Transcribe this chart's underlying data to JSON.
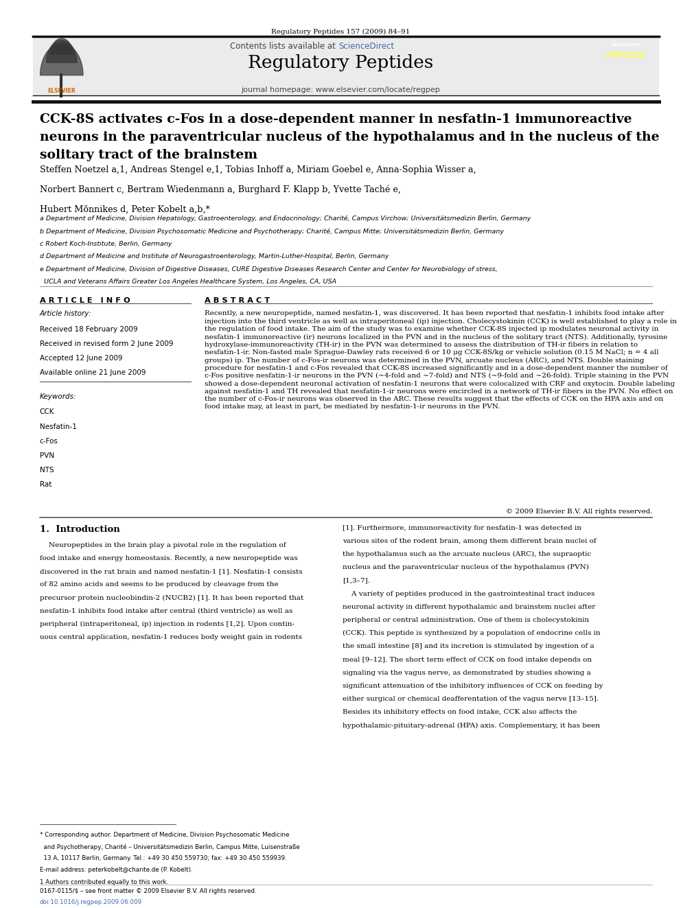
{
  "page_width": 9.92,
  "page_height": 13.23,
  "bg_color": "#ffffff",
  "header_journal_ref": "Regulatory Peptides 157 (2009) 84–91",
  "header_bg": "#ebebeb",
  "journal_title": "Regulatory Peptides",
  "journal_homepage": "journal homepage: www.elsevier.com/locate/regpep",
  "sciencedirect_text": "Contents lists available at ",
  "sciencedirect_link": "ScienceDirect",
  "article_title": "CCK-8S activates c-Fos in a dose-dependent manner in nesfatin-1 immunoreactive\nneurons in the paraventricular nucleus of the hypothalamus and in the nucleus of the\nsolitary tract of the brainstem",
  "authors_line1": "Steffen Noetzel a,1, Andreas Stengel e,1, Tobias Inhoff a, Miriam Goebel e, Anna-Sophia Wisser a,",
  "authors_line2": "Norbert Bannert c, Bertram Wiedenmann a, Burghard F. Klapp b, Yvette Taché e,",
  "authors_line3": "Hubert Mönnikes d, Peter Kobelt a,b,*",
  "affil_a": "a Department of Medicine, Division Hepatology, Gastroenterology, and Endocrinology; Charité, Campus Virchow; Universitätsmedizin Berlin, Germany",
  "affil_b": "b Department of Medicine, Division Psychosomatic Medicine and Psychotherapy; Charité, Campus Mitte; Universitätsmedizin Berlin, Germany",
  "affil_c": "c Robert Koch-Institute, Berlin, Germany",
  "affil_d": "d Department of Medicine and Institute of Neurogastroenterology, Martin-Luther-Hospital, Berlin, Germany",
  "affil_e1": "e Department of Medicine, Division of Digestive Diseases, CURE Digestive Diseases Research Center and Center for Neurobiology of stress,",
  "affil_e2": "  UCLA and Veterans Affairs Greater Los Angeles Healthcare System, Los Angeles, CA, USA",
  "article_info_header": "A R T I C L E   I N F O",
  "abstract_header": "A B S T R A C T",
  "article_history_label": "Article history:",
  "received_1": "Received 18 February 2009",
  "received_2": "Received in revised form 2 June 2009",
  "accepted": "Accepted 12 June 2009",
  "available": "Available online 21 June 2009",
  "keywords_label": "Keywords:",
  "keywords": [
    "CCK",
    "Nesfatin-1",
    "c-Fos",
    "PVN",
    "NTS",
    "Rat"
  ],
  "abstract_text": "Recently, a new neuropeptide, named nesfatin-1, was discovered. It has been reported that nesfatin-1 inhibits food intake after injection into the third ventricle as well as intraperitoneal (ip) injection. Cholecystokinin (CCK) is well established to play a role in the regulation of food intake. The aim of the study was to examine whether CCK-8S injected ip modulates neuronal activity in nesfatin-1 immunoreactive (ir) neurons localized in the PVN and in the nucleus of the solitary tract (NTS). Additionally, tyrosine hydroxylase-immunoreactivity (TH-ir) in the PVN was determined to assess the distribution of TH-ir fibers in relation to nesfatin-1-ir. Non-fasted male Sprague-Dawley rats received 6 or 10 μg CCK-8S/kg or vehicle solution (0.15 M NaCl; n = 4 all groups) ip. The number of c-Fos-ir neurons was determined in the PVN, arcuate nucleus (ARC), and NTS. Double staining procedure for nesfatin-1 and c-Fos revealed that CCK-8S increased significantly and in a dose-dependent manner the number of c-Fos positive nesfatin-1-ir neurons in the PVN (~4-fold and ~7-fold) and NTS (~9-fold and ~26-fold). Triple staining in the PVN showed a dose-dependent neuronal activation of nesfatin-1 neurons that were colocalized with CRF and oxytocin. Double labeling against nesfatin-1 and TH revealed that nesfatin-1-ir neurons were encircled in a network of TH-ir fibers in the PVN. No effect on the number of c-Fos-ir neurons was observed in the ARC. These results suggest that the effects of CCK on the HPA axis and on food intake may, at least in part, be mediated by nesfatin-1-ir neurons in the PVN.",
  "copyright": "© 2009 Elsevier B.V. All rights reserved.",
  "intro_header": "1.  Introduction",
  "intro_text_lines": [
    "    Neuropeptides in the brain play a pivotal role in the regulation of",
    "food intake and energy homeostasis. Recently, a new neuropeptide was",
    "discovered in the rat brain and named nesfatin-1 [1]. Nesfatin-1 consists",
    "of 82 amino acids and seems to be produced by cleavage from the",
    "precursor protein nucleobindin-2 (NUCB2) [1]. It has been reported that",
    "nesfatin-1 inhibits food intake after central (third ventricle) as well as",
    "peripheral (intraperitoneal, ip) injection in rodents [1,2]. Upon contin-",
    "uous central application, nesfatin-1 reduces body weight gain in rodents"
  ],
  "right_col_lines": [
    "[1]. Furthermore, immunoreactivity for nesfatin-1 was detected in",
    "various sites of the rodent brain, among them different brain nuclei of",
    "the hypothalamus such as the arcuate nucleus (ARC), the supraoptic",
    "nucleus and the paraventricular nucleus of the hypothalamus (PVN)",
    "[1,3–7].",
    "    A variety of peptides produced in the gastrointestinal tract induces",
    "neuronal activity in different hypothalamic and brainstem nuclei after",
    "peripheral or central administration. One of them is cholecystokinin",
    "(CCK). This peptide is synthesized by a population of endocrine cells in",
    "the small intestine [8] and its incretion is stimulated by ingestion of a",
    "meal [9–12]. The short term effect of CCK on food intake depends on",
    "signaling via the vagus nerve, as demonstrated by studies showing a",
    "significant attenuation of the inhibitory influences of CCK on feeding by",
    "either surgical or chemical deafferentation of the vagus nerve [13–15].",
    "Besides its inhibitory effects on food intake, CCK also affects the",
    "hypothalamic-pituitary-adrenal (HPA) axis. Complementary, it has been"
  ],
  "footnote_star": "* Corresponding author. Department of Medicine, Division Psychosomatic Medicine",
  "footnote_star2": "  and Psychotherapy, Charité – Universitätsmedizin Berlin, Campus Mitte, Luisenstraße",
  "footnote_star3": "  13 A, 10117 Berlin, Germany. Tel.: +49 30 450 559730; fax: +49 30 450 559939.",
  "footnote_email": "E-mail address: peterkobelt@charite.de (P. Kobelt).",
  "footnote_1": "1 Authors contributed equally to this work.",
  "footer_issn": "0167-0115/$ – see front matter © 2009 Elsevier B.V. All rights reserved.",
  "footer_doi": "doi:10.1016/j.regpep.2009.06.009",
  "link_color": "#4169aa",
  "text_color": "#000000",
  "separator_color": "#333333"
}
